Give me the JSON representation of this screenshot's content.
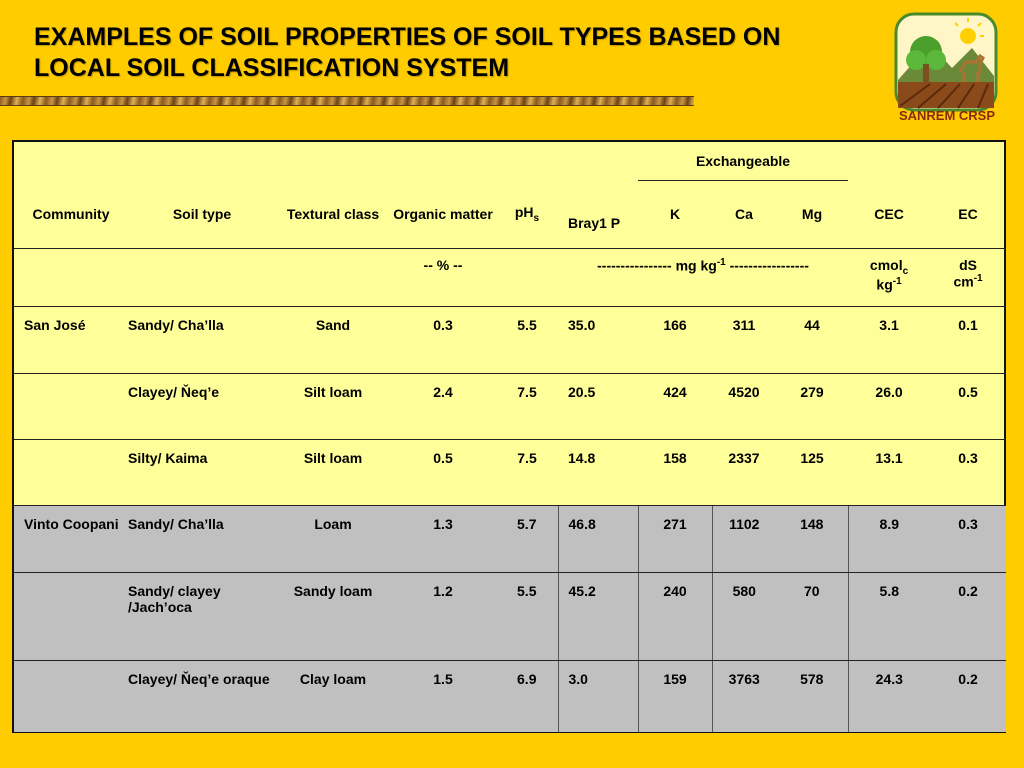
{
  "title": {
    "line1": "EXAMPLES OF SOIL PROPERTIES OF SOIL TYPES BASED ON",
    "line2": "LOCAL SOIL CLASSIFICATION SYSTEM"
  },
  "logo": {
    "text": "SANREM CRSP"
  },
  "table": {
    "group_header": "Exchangeable",
    "headers": {
      "community": "Community",
      "soil_type": "Soil type",
      "textural_class": "Textural class",
      "organic_matter": "Organic matter",
      "ph": "pH",
      "ph_sub": "s",
      "bray": "Bray1 P",
      "k": "K",
      "ca": "Ca",
      "mg": "Mg",
      "cec": "CEC",
      "ec": "EC"
    },
    "units": {
      "om": "-- % --",
      "mg_kg_pre": "---------------- mg kg",
      "mg_kg_sup": "-1",
      "mg_kg_post": " -----------------",
      "cec_main": "cmol",
      "cec_sub": "c",
      "cec_kg": "kg",
      "cec_sup": "-1",
      "ec_main": "dS",
      "ec_cm": "cm",
      "ec_sup": "-1"
    },
    "rows": [
      {
        "community": "San José",
        "soil_type": "Sandy/ Cha’lla",
        "textural_class": "Sand",
        "om": "0.3",
        "ph": "5.5",
        "bray": "35.0",
        "k": "166",
        "ca": "311",
        "mg": "44",
        "cec": "3.1",
        "ec": "0.1"
      },
      {
        "community": "",
        "soil_type": "Clayey/ Ňeq’e",
        "textural_class": "Silt loam",
        "om": "2.4",
        "ph": "7.5",
        "bray": "20.5",
        "k": "424",
        "ca": "4520",
        "mg": "279",
        "cec": "26.0",
        "ec": "0.5"
      },
      {
        "community": "",
        "soil_type": "Silty/  Kaima",
        "textural_class": "Silt loam",
        "om": "0.5",
        "ph": "7.5",
        "bray": "14.8",
        "k": "158",
        "ca": "2337",
        "mg": "125",
        "cec": "13.1",
        "ec": "0.3"
      },
      {
        "community": "Vinto Coopani",
        "soil_type": "Sandy/ Cha’lla",
        "textural_class": "Loam",
        "om": "1.3",
        "ph": "5.7",
        "bray": "46.8",
        "k": "271",
        "ca": "1102",
        "mg": "148",
        "cec": "8.9",
        "ec": "0.3"
      },
      {
        "community": "",
        "soil_type": "Sandy/ clayey /Jach’oca",
        "textural_class": "Sandy loam",
        "om": "1.2",
        "ph": "5.5",
        "bray": "45.2",
        "k": "240",
        "ca": "580",
        "mg": "70",
        "cec": "5.8",
        "ec": "0.2"
      },
      {
        "community": "",
        "soil_type": "Clayey/ Ňeq’e oraque",
        "textural_class": "Clay loam",
        "om": "1.5",
        "ph": "6.9",
        "bray": "3.0",
        "k": "159",
        "ca": "3763",
        "mg": "578",
        "cec": "24.3",
        "ec": "0.2"
      }
    ]
  },
  "colors": {
    "background": "#ffcc00",
    "table_yellow": "#ffff99",
    "table_gray": "#c0c0c0",
    "logo_text": "#8a2a0c"
  }
}
